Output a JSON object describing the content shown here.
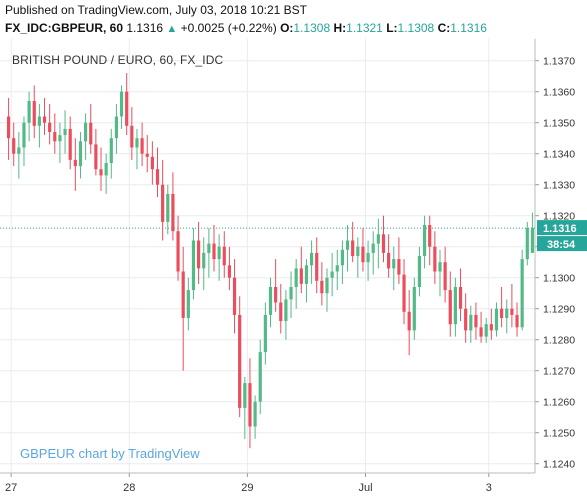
{
  "header": {
    "published": "Published on TradingView.com, July 03, 2018 10:21 BST",
    "symbol": "FX_IDC:GBPEUR, 60",
    "last": "1.1316",
    "change_icon": "up-triangle-icon",
    "change": "+0.0025 (+0.22%)",
    "o_label": "O:",
    "o_value": "1.1308",
    "h_label": "H:",
    "h_value": "1.1321",
    "l_label": "L:",
    "l_value": "1.1308",
    "c_label": "C:",
    "c_value": "1.1316"
  },
  "watermark": "GBPEUR chart by TradingView",
  "colors": {
    "up": "#53b987",
    "down": "#eb4d5c",
    "grid": "#e8ecf0",
    "accent": "#26a69a",
    "price_line": "#26a69a"
  },
  "chart_data": {
    "type": "candlestick",
    "title": "BRITISH POUND / EURO, 60, FX_IDC",
    "y_ticks": [
      "1.1370",
      "1.1360",
      "1.1350",
      "1.1340",
      "1.1330",
      "1.1320",
      "1.1310",
      "1.1300",
      "1.1290",
      "1.1280",
      "1.1270",
      "1.1260",
      "1.1250",
      "1.1240"
    ],
    "ylim": [
      1.1237,
      1.1377
    ],
    "x_ticks": [
      "27",
      "28",
      "29",
      "Jul",
      "3"
    ],
    "current_price": {
      "value": 1.1316,
      "label": "1.1316",
      "countdown": "38:54"
    },
    "candles": [
      {
        "o": 1.1352,
        "h": 1.1358,
        "l": 1.1338,
        "c": 1.1345
      },
      {
        "o": 1.1345,
        "h": 1.135,
        "l": 1.1336,
        "c": 1.134
      },
      {
        "o": 1.134,
        "h": 1.1347,
        "l": 1.1332,
        "c": 1.1342
      },
      {
        "o": 1.1342,
        "h": 1.1352,
        "l": 1.1336,
        "c": 1.135
      },
      {
        "o": 1.135,
        "h": 1.136,
        "l": 1.1344,
        "c": 1.1357
      },
      {
        "o": 1.1357,
        "h": 1.1362,
        "l": 1.1345,
        "c": 1.1349
      },
      {
        "o": 1.1349,
        "h": 1.1356,
        "l": 1.1342,
        "c": 1.1352
      },
      {
        "o": 1.1352,
        "h": 1.1358,
        "l": 1.1346,
        "c": 1.135
      },
      {
        "o": 1.135,
        "h": 1.1356,
        "l": 1.1343,
        "c": 1.1347
      },
      {
        "o": 1.1347,
        "h": 1.1353,
        "l": 1.134,
        "c": 1.1344
      },
      {
        "o": 1.1344,
        "h": 1.135,
        "l": 1.1337,
        "c": 1.1346
      },
      {
        "o": 1.1346,
        "h": 1.1354,
        "l": 1.134,
        "c": 1.1348
      },
      {
        "o": 1.1348,
        "h": 1.1352,
        "l": 1.1335,
        "c": 1.1338
      },
      {
        "o": 1.1338,
        "h": 1.1345,
        "l": 1.1328,
        "c": 1.1336
      },
      {
        "o": 1.1336,
        "h": 1.1347,
        "l": 1.1332,
        "c": 1.1344
      },
      {
        "o": 1.1344,
        "h": 1.1353,
        "l": 1.1338,
        "c": 1.135
      },
      {
        "o": 1.135,
        "h": 1.1356,
        "l": 1.134,
        "c": 1.1343
      },
      {
        "o": 1.1343,
        "h": 1.1348,
        "l": 1.1333,
        "c": 1.1335
      },
      {
        "o": 1.1335,
        "h": 1.1342,
        "l": 1.1328,
        "c": 1.1333
      },
      {
        "o": 1.1333,
        "h": 1.134,
        "l": 1.1327,
        "c": 1.1337
      },
      {
        "o": 1.1337,
        "h": 1.1348,
        "l": 1.1332,
        "c": 1.1345
      },
      {
        "o": 1.1345,
        "h": 1.1356,
        "l": 1.134,
        "c": 1.1352
      },
      {
        "o": 1.1352,
        "h": 1.1362,
        "l": 1.1348,
        "c": 1.136
      },
      {
        "o": 1.136,
        "h": 1.1366,
        "l": 1.1346,
        "c": 1.1349
      },
      {
        "o": 1.1349,
        "h": 1.1355,
        "l": 1.1338,
        "c": 1.1342
      },
      {
        "o": 1.1342,
        "h": 1.1348,
        "l": 1.1335,
        "c": 1.1345
      },
      {
        "o": 1.1345,
        "h": 1.135,
        "l": 1.1336,
        "c": 1.134
      },
      {
        "o": 1.134,
        "h": 1.1346,
        "l": 1.1334,
        "c": 1.1339
      },
      {
        "o": 1.1339,
        "h": 1.1344,
        "l": 1.133,
        "c": 1.1335
      },
      {
        "o": 1.1335,
        "h": 1.1342,
        "l": 1.1326,
        "c": 1.133
      },
      {
        "o": 1.133,
        "h": 1.1338,
        "l": 1.1312,
        "c": 1.1318
      },
      {
        "o": 1.1318,
        "h": 1.133,
        "l": 1.1314,
        "c": 1.1327
      },
      {
        "o": 1.1327,
        "h": 1.1334,
        "l": 1.1312,
        "c": 1.1315
      },
      {
        "o": 1.1315,
        "h": 1.132,
        "l": 1.1299,
        "c": 1.1302
      },
      {
        "o": 1.1302,
        "h": 1.131,
        "l": 1.127,
        "c": 1.1287
      },
      {
        "o": 1.1287,
        "h": 1.13,
        "l": 1.1283,
        "c": 1.1296
      },
      {
        "o": 1.1296,
        "h": 1.1316,
        "l": 1.1293,
        "c": 1.1312
      },
      {
        "o": 1.1312,
        "h": 1.1318,
        "l": 1.1298,
        "c": 1.1303
      },
      {
        "o": 1.1303,
        "h": 1.1313,
        "l": 1.1296,
        "c": 1.1308
      },
      {
        "o": 1.1308,
        "h": 1.1316,
        "l": 1.13,
        "c": 1.1311
      },
      {
        "o": 1.1311,
        "h": 1.1317,
        "l": 1.1302,
        "c": 1.1306
      },
      {
        "o": 1.1306,
        "h": 1.1314,
        "l": 1.1299,
        "c": 1.131
      },
      {
        "o": 1.131,
        "h": 1.1315,
        "l": 1.13,
        "c": 1.1304
      },
      {
        "o": 1.1304,
        "h": 1.131,
        "l": 1.1296,
        "c": 1.13
      },
      {
        "o": 1.13,
        "h": 1.1306,
        "l": 1.1282,
        "c": 1.1288
      },
      {
        "o": 1.1288,
        "h": 1.1294,
        "l": 1.1255,
        "c": 1.1258
      },
      {
        "o": 1.1258,
        "h": 1.1268,
        "l": 1.1248,
        "c": 1.1266
      },
      {
        "o": 1.1266,
        "h": 1.1274,
        "l": 1.1245,
        "c": 1.1252
      },
      {
        "o": 1.1252,
        "h": 1.1262,
        "l": 1.1248,
        "c": 1.126
      },
      {
        "o": 1.126,
        "h": 1.128,
        "l": 1.1256,
        "c": 1.1276
      },
      {
        "o": 1.1276,
        "h": 1.1292,
        "l": 1.1272,
        "c": 1.1288
      },
      {
        "o": 1.1288,
        "h": 1.13,
        "l": 1.1284,
        "c": 1.1297
      },
      {
        "o": 1.1297,
        "h": 1.1306,
        "l": 1.1289,
        "c": 1.1292
      },
      {
        "o": 1.1292,
        "h": 1.1298,
        "l": 1.1282,
        "c": 1.1286
      },
      {
        "o": 1.1286,
        "h": 1.1296,
        "l": 1.128,
        "c": 1.1293
      },
      {
        "o": 1.1293,
        "h": 1.1302,
        "l": 1.1287,
        "c": 1.1297
      },
      {
        "o": 1.1297,
        "h": 1.1306,
        "l": 1.129,
        "c": 1.1303
      },
      {
        "o": 1.1303,
        "h": 1.131,
        "l": 1.1295,
        "c": 1.1298
      },
      {
        "o": 1.1298,
        "h": 1.1306,
        "l": 1.1292,
        "c": 1.1304
      },
      {
        "o": 1.1304,
        "h": 1.1312,
        "l": 1.1298,
        "c": 1.1308
      },
      {
        "o": 1.1308,
        "h": 1.1313,
        "l": 1.1295,
        "c": 1.1299
      },
      {
        "o": 1.1299,
        "h": 1.1305,
        "l": 1.1291,
        "c": 1.1295
      },
      {
        "o": 1.1295,
        "h": 1.1303,
        "l": 1.1289,
        "c": 1.13
      },
      {
        "o": 1.13,
        "h": 1.1308,
        "l": 1.1294,
        "c": 1.1302
      },
      {
        "o": 1.1302,
        "h": 1.1309,
        "l": 1.1296,
        "c": 1.1304
      },
      {
        "o": 1.1304,
        "h": 1.1312,
        "l": 1.1298,
        "c": 1.1309
      },
      {
        "o": 1.1309,
        "h": 1.1317,
        "l": 1.1302,
        "c": 1.1312
      },
      {
        "o": 1.1312,
        "h": 1.1318,
        "l": 1.1305,
        "c": 1.1307
      },
      {
        "o": 1.1307,
        "h": 1.1313,
        "l": 1.13,
        "c": 1.131
      },
      {
        "o": 1.131,
        "h": 1.1316,
        "l": 1.1302,
        "c": 1.1305
      },
      {
        "o": 1.1305,
        "h": 1.1312,
        "l": 1.1299,
        "c": 1.1308
      },
      {
        "o": 1.1308,
        "h": 1.1315,
        "l": 1.1301,
        "c": 1.1311
      },
      {
        "o": 1.1311,
        "h": 1.1319,
        "l": 1.1303,
        "c": 1.1314
      },
      {
        "o": 1.1314,
        "h": 1.132,
        "l": 1.1305,
        "c": 1.1308
      },
      {
        "o": 1.1308,
        "h": 1.1314,
        "l": 1.13,
        "c": 1.1303
      },
      {
        "o": 1.1303,
        "h": 1.131,
        "l": 1.1296,
        "c": 1.1306
      },
      {
        "o": 1.1306,
        "h": 1.1313,
        "l": 1.1298,
        "c": 1.1301
      },
      {
        "o": 1.1301,
        "h": 1.1306,
        "l": 1.1285,
        "c": 1.1289
      },
      {
        "o": 1.1289,
        "h": 1.1296,
        "l": 1.1275,
        "c": 1.1283
      },
      {
        "o": 1.1283,
        "h": 1.13,
        "l": 1.128,
        "c": 1.1297
      },
      {
        "o": 1.1297,
        "h": 1.131,
        "l": 1.1294,
        "c": 1.1307
      },
      {
        "o": 1.1307,
        "h": 1.132,
        "l": 1.1303,
        "c": 1.1317
      },
      {
        "o": 1.1317,
        "h": 1.132,
        "l": 1.1304,
        "c": 1.131
      },
      {
        "o": 1.131,
        "h": 1.1315,
        "l": 1.1298,
        "c": 1.1302
      },
      {
        "o": 1.1302,
        "h": 1.1309,
        "l": 1.1294,
        "c": 1.1305
      },
      {
        "o": 1.1305,
        "h": 1.131,
        "l": 1.1292,
        "c": 1.1296
      },
      {
        "o": 1.1296,
        "h": 1.1302,
        "l": 1.1281,
        "c": 1.1285
      },
      {
        "o": 1.1285,
        "h": 1.13,
        "l": 1.1281,
        "c": 1.1297
      },
      {
        "o": 1.1297,
        "h": 1.1303,
        "l": 1.1286,
        "c": 1.129
      },
      {
        "o": 1.129,
        "h": 1.1295,
        "l": 1.1279,
        "c": 1.1283
      },
      {
        "o": 1.1283,
        "h": 1.1291,
        "l": 1.1279,
        "c": 1.1288
      },
      {
        "o": 1.1288,
        "h": 1.1292,
        "l": 1.128,
        "c": 1.1284
      },
      {
        "o": 1.1284,
        "h": 1.1289,
        "l": 1.1279,
        "c": 1.1281
      },
      {
        "o": 1.1281,
        "h": 1.1287,
        "l": 1.1279,
        "c": 1.1285
      },
      {
        "o": 1.1285,
        "h": 1.129,
        "l": 1.128,
        "c": 1.1283
      },
      {
        "o": 1.1283,
        "h": 1.1292,
        "l": 1.1281,
        "c": 1.129
      },
      {
        "o": 1.129,
        "h": 1.1297,
        "l": 1.1284,
        "c": 1.1287
      },
      {
        "o": 1.1287,
        "h": 1.1293,
        "l": 1.1282,
        "c": 1.129
      },
      {
        "o": 1.129,
        "h": 1.1298,
        "l": 1.1284,
        "c": 1.1288
      },
      {
        "o": 1.1288,
        "h": 1.1292,
        "l": 1.1281,
        "c": 1.1284
      },
      {
        "o": 1.1284,
        "h": 1.1309,
        "l": 1.1283,
        "c": 1.1306
      },
      {
        "o": 1.1306,
        "h": 1.1318,
        "l": 1.1304,
        "c": 1.1316
      },
      {
        "o": 1.1308,
        "h": 1.1321,
        "l": 1.1308,
        "c": 1.1316
      }
    ]
  }
}
